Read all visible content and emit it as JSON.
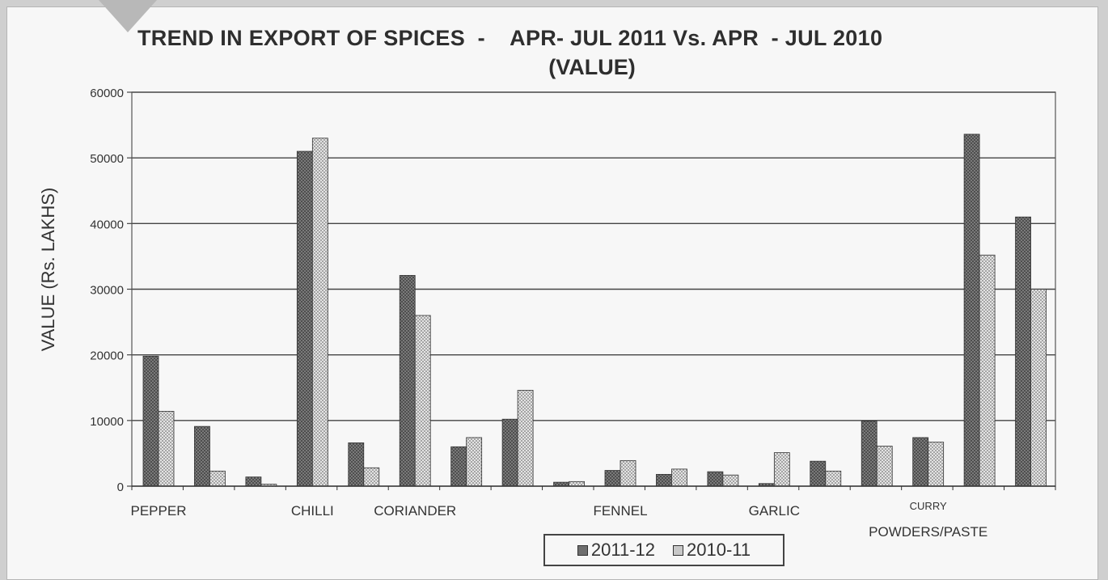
{
  "chart_data": {
    "type": "bar",
    "title": "TREND IN EXPORT OF SPICES  -    APR- JUL 2011 Vs. APR  - JUL 2010",
    "subtitle": "(VALUE)",
    "ylabel": "VALUE (Rs. LAKHS)",
    "ylim": [
      0,
      60000
    ],
    "yticks": [
      "0",
      "10000",
      "20000",
      "30000",
      "40000",
      "50000",
      "60000"
    ],
    "grid": true,
    "legend_position": "bottom-center",
    "category_labels": [
      {
        "text": "PEPPER",
        "group": 0
      },
      {
        "text": "CHILLI",
        "group": 3
      },
      {
        "text": "CORIANDER",
        "group": 5
      },
      {
        "text": "FENNEL",
        "group": 9
      },
      {
        "text": "GARLIC",
        "group": 12
      },
      {
        "text": "CURRY",
        "group": 15
      },
      {
        "text": "POWDERS/PASTE",
        "group": 15
      }
    ],
    "series": [
      {
        "name": "2011-12",
        "values": [
          19800,
          9100,
          1400,
          51000,
          6600,
          32100,
          6000,
          10200,
          600,
          2400,
          1800,
          2200,
          400,
          3800,
          9900,
          7400,
          53600,
          41000
        ],
        "color": "#6e6e6e"
      },
      {
        "name": "2010-11",
        "values": [
          11400,
          2300,
          300,
          53000,
          2800,
          26000,
          7400,
          14600,
          700,
          3900,
          2600,
          1700,
          5100,
          2300,
          6100,
          6700,
          35200,
          30000
        ],
        "color": "#c8c8c8"
      }
    ]
  }
}
